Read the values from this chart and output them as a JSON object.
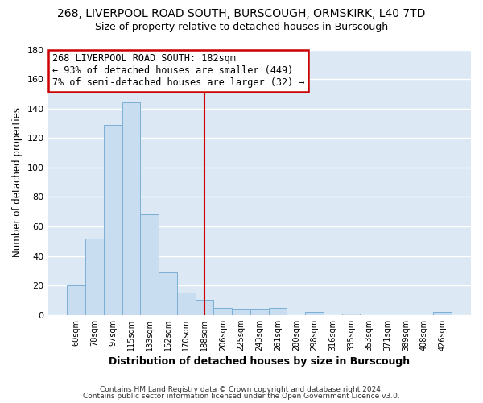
{
  "title1": "268, LIVERPOOL ROAD SOUTH, BURSCOUGH, ORMSKIRK, L40 7TD",
  "title2": "Size of property relative to detached houses in Burscough",
  "xlabel": "Distribution of detached houses by size in Burscough",
  "ylabel": "Number of detached properties",
  "bar_labels": [
    "60sqm",
    "78sqm",
    "97sqm",
    "115sqm",
    "133sqm",
    "152sqm",
    "170sqm",
    "188sqm",
    "206sqm",
    "225sqm",
    "243sqm",
    "261sqm",
    "280sqm",
    "298sqm",
    "316sqm",
    "335sqm",
    "353sqm",
    "371sqm",
    "389sqm",
    "408sqm",
    "426sqm"
  ],
  "bar_values": [
    20,
    52,
    129,
    144,
    68,
    29,
    15,
    10,
    5,
    4,
    4,
    5,
    0,
    2,
    0,
    1,
    0,
    0,
    0,
    0,
    2
  ],
  "bar_color": "#c9ddf0",
  "bar_edge_color": "#7bafd4",
  "vline_x": 7,
  "vline_color": "#cc0000",
  "ylim": [
    0,
    180
  ],
  "yticks": [
    0,
    20,
    40,
    60,
    80,
    100,
    120,
    140,
    160,
    180
  ],
  "annotation_title": "268 LIVERPOOL ROAD SOUTH: 182sqm",
  "annotation_line1": "← 93% of detached houses are smaller (449)",
  "annotation_line2": "7% of semi-detached houses are larger (32) →",
  "footer1": "Contains HM Land Registry data © Crown copyright and database right 2024.",
  "footer2": "Contains public sector information licensed under the Open Government Licence v3.0.",
  "bg_color": "#ffffff",
  "plot_bg_color": "#dce9f5",
  "grid_color": "#ffffff",
  "annotation_box_color": "#ffffff",
  "annotation_box_edge": "#cc0000"
}
